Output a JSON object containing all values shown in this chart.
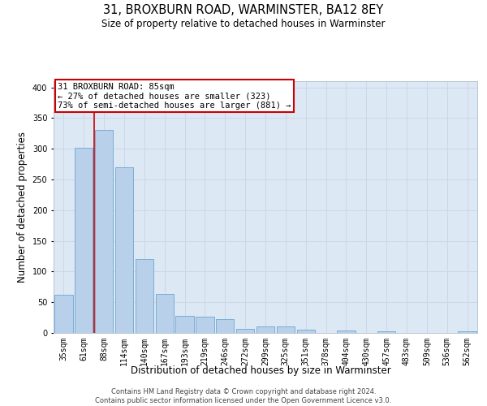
{
  "title_line1": "31, BROXBURN ROAD, WARMINSTER, BA12 8EY",
  "title_line2": "Size of property relative to detached houses in Warminster",
  "xlabel": "Distribution of detached houses by size in Warminster",
  "ylabel": "Number of detached properties",
  "bar_color": "#b8d0ea",
  "bar_edge_color": "#7aadd4",
  "categories": [
    "35sqm",
    "61sqm",
    "88sqm",
    "114sqm",
    "140sqm",
    "167sqm",
    "193sqm",
    "219sqm",
    "246sqm",
    "272sqm",
    "299sqm",
    "325sqm",
    "351sqm",
    "378sqm",
    "404sqm",
    "430sqm",
    "457sqm",
    "483sqm",
    "509sqm",
    "536sqm",
    "562sqm"
  ],
  "values": [
    62,
    302,
    330,
    270,
    120,
    63,
    28,
    27,
    23,
    7,
    11,
    11,
    5,
    0,
    4,
    0,
    3,
    0,
    0,
    0,
    3
  ],
  "vline_x": 1.5,
  "vline_color": "#cc0000",
  "annotation_line1": "31 BROXBURN ROAD: 85sqm",
  "annotation_line2": "← 27% of detached houses are smaller (323)",
  "annotation_line3": "73% of semi-detached houses are larger (881) →",
  "annotation_fontsize": 7.5,
  "box_edge_color": "#cc0000",
  "ylim": [
    0,
    410
  ],
  "yticks": [
    0,
    50,
    100,
    150,
    200,
    250,
    300,
    350,
    400
  ],
  "grid_color": "#ccd6e8",
  "background_color": "#dde8f5",
  "footer_line1": "Contains HM Land Registry data © Crown copyright and database right 2024.",
  "footer_line2": "Contains public sector information licensed under the Open Government Licence v3.0.",
  "title_fontsize": 10.5,
  "subtitle_fontsize": 8.5,
  "tick_fontsize": 7,
  "ylabel_fontsize": 8.5,
  "xlabel_fontsize": 8.5,
  "footer_fontsize": 6
}
